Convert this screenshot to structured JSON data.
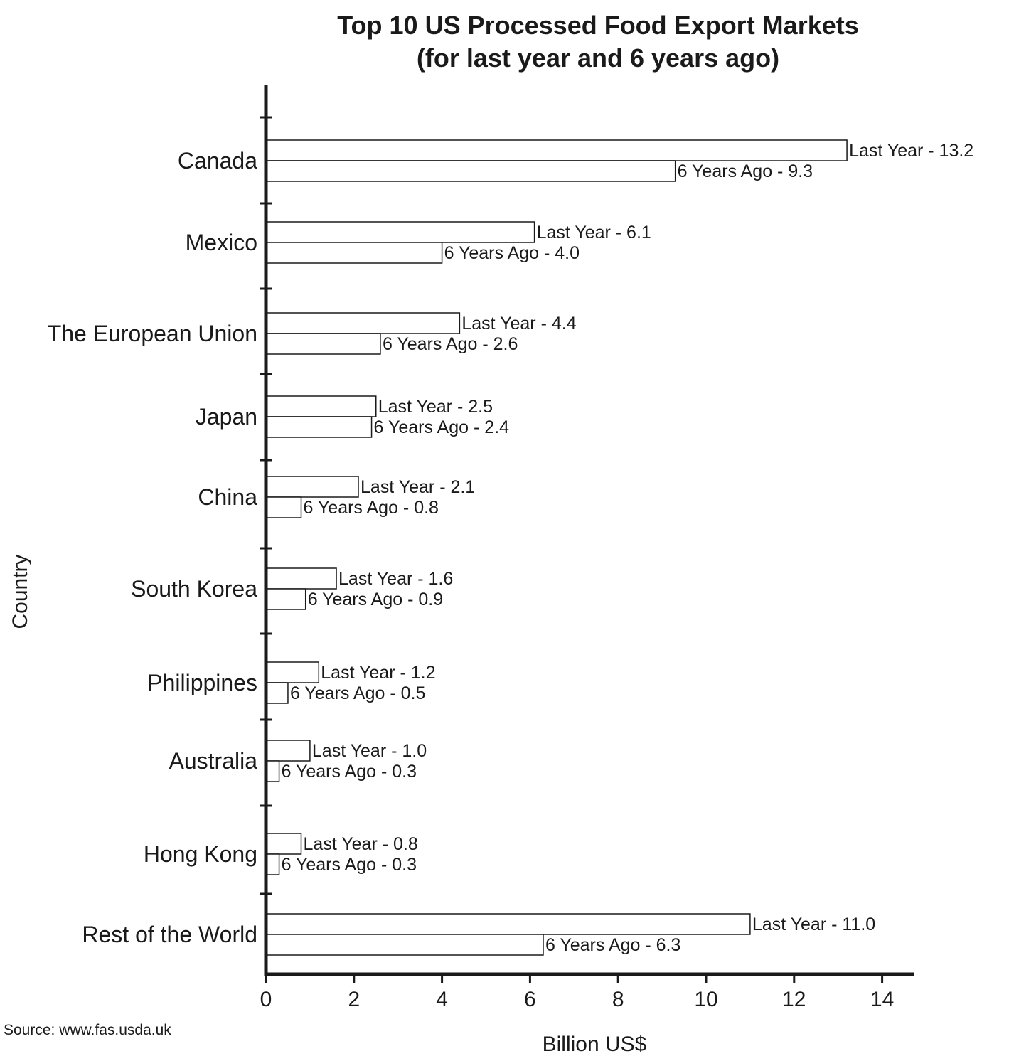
{
  "chart_data": {
    "type": "bar",
    "orientation": "horizontal",
    "title": "Top 10 US Processed Food Export Markets",
    "subtitle": "(for last year and 6 years ago)",
    "xlabel": "Billion US$",
    "ylabel": "Country",
    "xlim": [
      0,
      14
    ],
    "xticks": [
      0,
      2,
      4,
      6,
      8,
      10,
      12,
      14
    ],
    "grid": false,
    "categories": [
      "Canada",
      "Mexico",
      "The European Union",
      "Japan",
      "China",
      "South Korea",
      "Philippines",
      "Australia",
      "Hong Kong",
      "Rest of the World"
    ],
    "series": [
      {
        "name": "Last Year",
        "values": [
          13.2,
          6.1,
          4.4,
          2.5,
          2.1,
          1.6,
          1.2,
          1.0,
          0.8,
          11.0
        ],
        "labels": [
          "Last Year - 13.2",
          "Last Year - 6.1",
          "Last Year - 4.4",
          "Last Year - 2.5",
          "Last Year - 2.1",
          "Last Year - 1.6",
          "Last Year - 1.2",
          "Last Year - 1.0",
          "Last Year - 0.8",
          "Last Year - 11.0"
        ]
      },
      {
        "name": "6 Years Ago",
        "values": [
          9.3,
          4.0,
          2.6,
          2.4,
          0.8,
          0.9,
          0.5,
          0.3,
          0.3,
          6.3
        ],
        "labels": [
          "6 Years Ago - 9.3",
          "6 Years Ago - 4.0",
          "6 Years Ago - 2.6",
          "6 Years Ago - 2.4",
          "6 Years Ago - 0.8",
          "6 Years Ago - 0.9",
          "6 Years Ago - 0.5",
          "6 Years Ago - 0.3",
          "6 Years Ago - 0.3",
          "6 Years Ago - 6.3"
        ]
      }
    ],
    "bar_fill": "#ffffff",
    "bar_stroke": "#1a1a1a"
  },
  "source": "Source: www.fas.usda.uk"
}
